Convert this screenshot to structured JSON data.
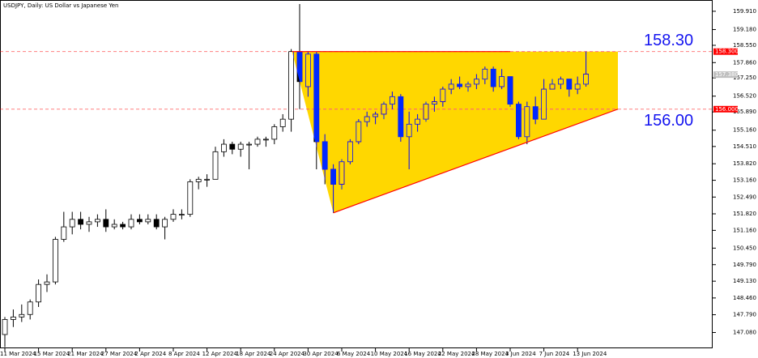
{
  "chart_data": {
    "type": "candlestick",
    "title": "USDJPY, Daily:  US Dollar vs Japanese Yen",
    "categories": [
      "11 Mar 2024",
      null,
      null,
      null,
      "15 Mar 2024",
      null,
      null,
      null,
      "21 Mar 2024",
      null,
      null,
      null,
      "27 Mar 2024",
      null,
      null,
      null,
      "2 Apr 2024",
      null,
      null,
      null,
      "8 Apr 2024",
      null,
      null,
      null,
      "12 Apr 2024",
      null,
      null,
      null,
      "18 Apr 2024",
      null,
      null,
      null,
      "24 Apr 2024",
      null,
      null,
      null,
      "30 Apr 2024",
      null,
      null,
      null,
      "6 May 2024",
      null,
      null,
      null,
      "10 May 2024",
      null,
      null,
      null,
      "16 May 2024",
      null,
      null,
      null,
      "22 May 2024",
      null,
      null,
      null,
      "28 May 2024",
      null,
      null,
      null,
      "3 Jun 2024",
      null,
      null,
      null,
      "7 Jun 2024",
      null,
      null,
      null,
      "13 Jun 2024",
      null
    ],
    "open": [
      147.0,
      147.6,
      147.7,
      147.8,
      148.3,
      149.0,
      149.1,
      150.8,
      151.3,
      151.6,
      151.4,
      151.5,
      151.6,
      151.3,
      151.4,
      151.3,
      151.6,
      151.5,
      151.6,
      151.3,
      151.6,
      151.8,
      151.8,
      153.1,
      153.2,
      153.2,
      154.3,
      154.6,
      154.4,
      154.6,
      154.6,
      154.8,
      154.8,
      155.3,
      155.6,
      158.3,
      156.9,
      158.2,
      154.7,
      153.6,
      153.0,
      153.9,
      154.7,
      155.5,
      155.7,
      155.8,
      156.2,
      156.5,
      154.9,
      155.4,
      155.6,
      156.2,
      156.3,
      156.8,
      157.0,
      156.9,
      157.0,
      157.2,
      157.6,
      156.9,
      157.3,
      156.2,
      154.9,
      156.1,
      155.6,
      156.8,
      157.0,
      157.2,
      156.8,
      157.0
    ],
    "high": [
      147.7,
      148.0,
      148.2,
      148.4,
      149.2,
      149.4,
      150.9,
      151.9,
      151.9,
      151.9,
      151.7,
      151.8,
      152.0,
      151.6,
      151.5,
      151.8,
      151.8,
      151.8,
      151.8,
      151.7,
      152.0,
      152.0,
      153.2,
      153.3,
      153.4,
      154.5,
      154.8,
      154.7,
      154.7,
      154.7,
      154.9,
      154.9,
      155.4,
      155.8,
      158.4,
      160.2,
      158.3,
      158.3,
      155.0,
      153.8,
      154.0,
      154.8,
      155.6,
      155.9,
      155.9,
      156.3,
      156.7,
      156.6,
      155.9,
      155.8,
      156.3,
      156.5,
      156.9,
      157.2,
      157.3,
      157.1,
      157.4,
      157.7,
      157.7,
      157.6,
      157.3,
      156.3,
      156.3,
      156.5,
      157.2,
      157.2,
      157.3,
      157.2,
      157.3,
      158.3
    ],
    "low": [
      146.5,
      147.3,
      147.5,
      147.6,
      148.1,
      148.7,
      149.0,
      150.7,
      151.0,
      151.2,
      151.1,
      151.3,
      151.1,
      151.2,
      151.2,
      151.2,
      151.4,
      151.4,
      151.2,
      150.8,
      151.5,
      151.6,
      151.7,
      152.8,
      152.9,
      153.2,
      154.1,
      154.2,
      154.1,
      153.6,
      154.5,
      154.5,
      154.6,
      155.1,
      155.1,
      156.0,
      156.5,
      153.6,
      153.0,
      151.86,
      152.8,
      153.8,
      154.6,
      155.3,
      155.4,
      155.6,
      156.0,
      154.7,
      153.6,
      155.1,
      155.5,
      155.9,
      156.1,
      156.6,
      156.8,
      156.7,
      156.8,
      157.0,
      156.7,
      156.8,
      156.1,
      154.8,
      154.6,
      155.4,
      155.6,
      156.8,
      156.8,
      156.5,
      156.6,
      156.9
    ],
    "close": [
      147.6,
      147.7,
      147.8,
      148.3,
      149.0,
      149.1,
      150.8,
      151.3,
      151.6,
      151.4,
      151.5,
      151.6,
      151.3,
      151.4,
      151.3,
      151.6,
      151.5,
      151.6,
      151.3,
      151.6,
      151.8,
      151.8,
      153.1,
      153.2,
      153.2,
      154.3,
      154.6,
      154.4,
      154.6,
      154.6,
      154.8,
      154.8,
      155.3,
      155.6,
      158.3,
      157.1,
      158.2,
      154.7,
      153.6,
      153.0,
      153.9,
      154.7,
      155.5,
      155.7,
      155.8,
      156.2,
      156.5,
      154.9,
      155.4,
      155.6,
      156.2,
      156.3,
      156.8,
      157.0,
      156.9,
      157.0,
      157.2,
      157.6,
      156.9,
      157.3,
      156.2,
      154.9,
      156.1,
      155.6,
      156.8,
      157.0,
      157.2,
      156.8,
      157.0,
      157.4
    ],
    "bull_color": "#ffffff",
    "bear_color": "#000000",
    "ylim": [
      146.45,
      160.36
    ],
    "yticks": [
      {
        "value": 147.08,
        "label": "147.080"
      },
      {
        "value": 147.79,
        "label": "147.790"
      },
      {
        "value": 148.46,
        "label": "148.460"
      },
      {
        "value": 149.13,
        "label": "149.130"
      },
      {
        "value": 149.79,
        "label": "149.790"
      },
      {
        "value": 150.45,
        "label": "150.450"
      },
      {
        "value": 151.16,
        "label": "151.160"
      },
      {
        "value": 151.82,
        "label": "151.820"
      },
      {
        "value": 152.49,
        "label": "152.490"
      },
      {
        "value": 153.16,
        "label": "153.160"
      },
      {
        "value": 153.82,
        "label": "153.820"
      },
      {
        "value": 154.51,
        "label": "154.510"
      },
      {
        "value": 155.16,
        "label": "155.160"
      },
      {
        "value": 155.89,
        "label": "155.890"
      },
      {
        "value": 156.52,
        "label": "156.520"
      },
      {
        "value": 157.25,
        "label": "157.250"
      },
      {
        "value": 157.86,
        "label": "157.860"
      },
      {
        "value": 158.55,
        "label": "158.550"
      },
      {
        "value": 159.18,
        "label": "159.180"
      },
      {
        "value": 159.91,
        "label": "159.910"
      }
    ],
    "levels": [
      {
        "value": 158.3,
        "label": "158.30",
        "axis_label": "158.300"
      },
      {
        "value": 156.0,
        "label": "156.00",
        "axis_label": "156.000"
      }
    ],
    "level_color": "#ff0000",
    "current_price": {
      "value": 157.38,
      "label": "157.380"
    },
    "pattern": {
      "type": "triangle",
      "low": 151.86,
      "color": "#ffd700",
      "edge_color": "#ff0000"
    }
  }
}
